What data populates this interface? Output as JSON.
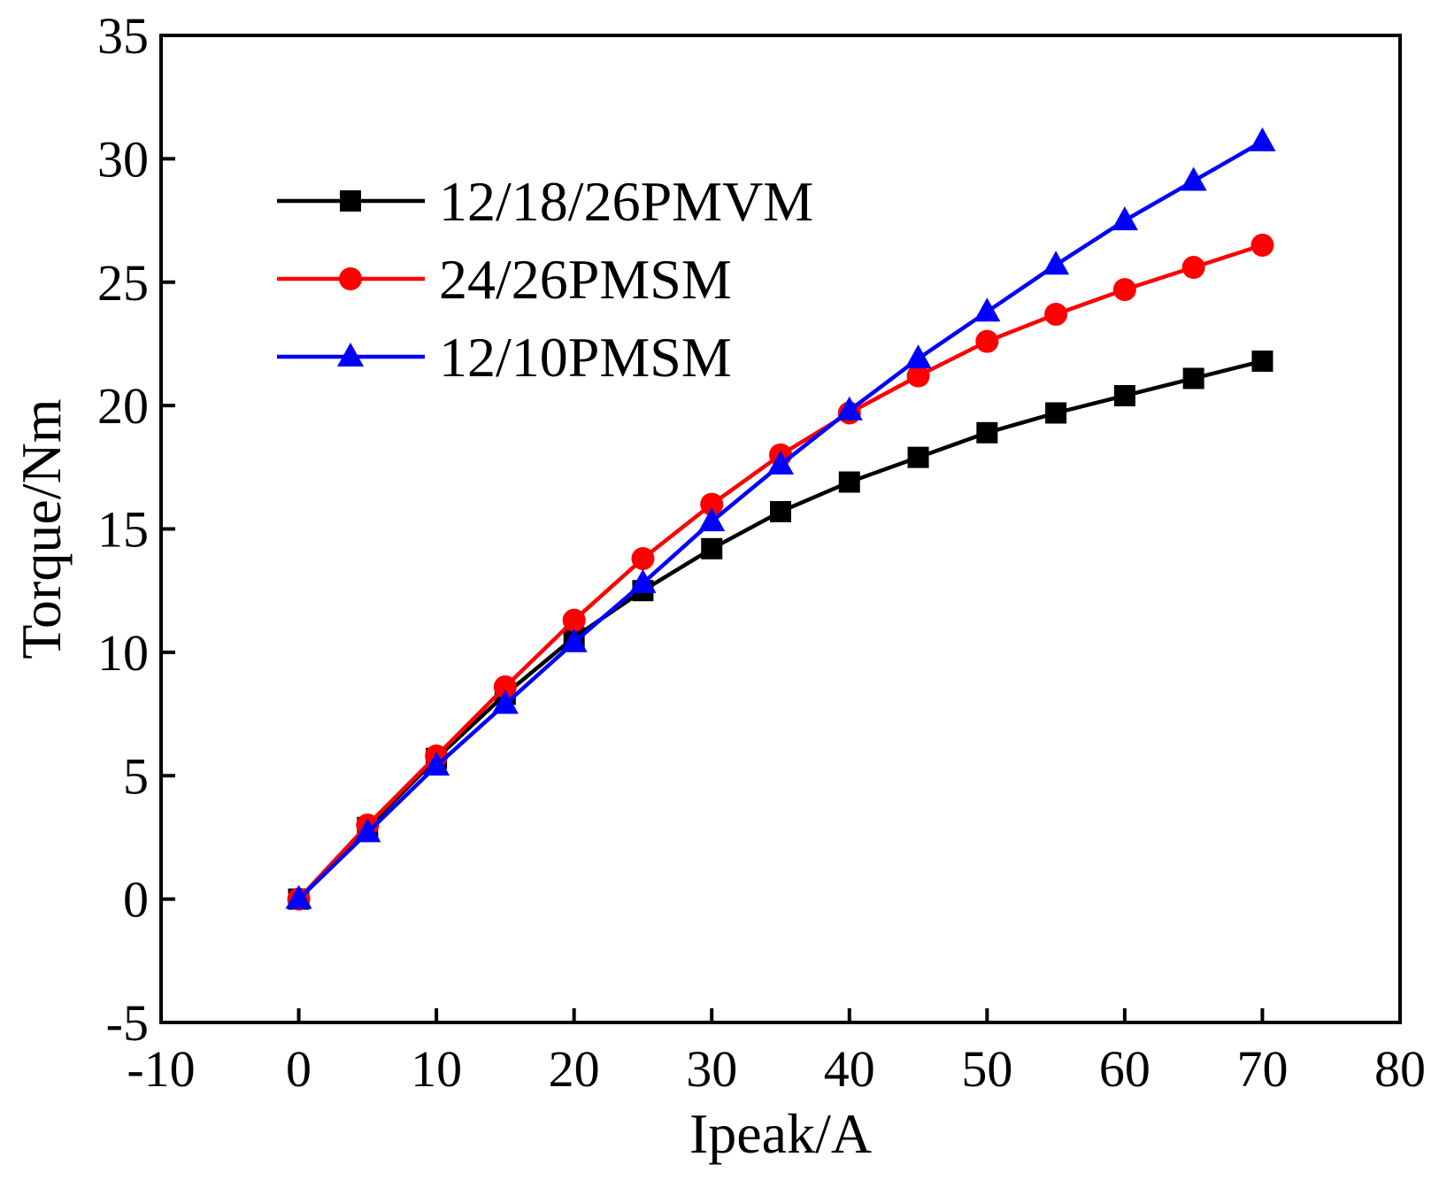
{
  "chart_data": {
    "type": "line",
    "title": "",
    "xlabel": "Ipeak/A",
    "ylabel": "Torque/Nm",
    "xlim": [
      -10,
      80
    ],
    "ylim": [
      -5,
      35
    ],
    "xticks": [
      -10,
      0,
      10,
      20,
      30,
      40,
      50,
      60,
      70,
      80
    ],
    "yticks": [
      -5,
      0,
      5,
      10,
      15,
      20,
      25,
      30,
      35
    ],
    "grid": false,
    "legend_position": "top-left",
    "x": [
      0,
      5,
      10,
      15,
      20,
      25,
      30,
      35,
      40,
      45,
      50,
      55,
      60,
      65,
      70
    ],
    "series": [
      {
        "name": "12/18/26PMVM",
        "color": "#000000",
        "marker": "square",
        "values": [
          0,
          2.9,
          5.7,
          8.3,
          10.6,
          12.5,
          14.2,
          15.7,
          16.9,
          17.9,
          18.9,
          19.7,
          20.4,
          21.1,
          21.8
        ]
      },
      {
        "name": "24/26PMSM",
        "color": "#ff0000",
        "marker": "circle",
        "values": [
          0,
          3.0,
          5.8,
          8.6,
          11.3,
          13.8,
          16.0,
          18.0,
          19.7,
          21.2,
          22.6,
          23.7,
          24.7,
          25.6,
          26.5
        ]
      },
      {
        "name": "12/10PMSM",
        "color": "#0000ff",
        "marker": "triangle",
        "values": [
          0,
          2.7,
          5.4,
          7.9,
          10.4,
          12.8,
          15.3,
          17.6,
          19.8,
          21.9,
          23.8,
          25.7,
          27.5,
          29.1,
          30.7
        ]
      }
    ]
  }
}
